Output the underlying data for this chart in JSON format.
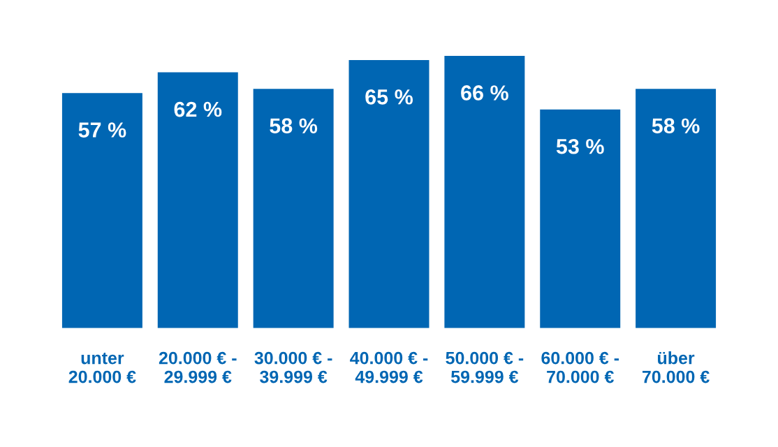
{
  "chart_data": {
    "type": "bar",
    "categories": [
      "unter\n20.000 €",
      "20.000 € -\n29.999 €",
      "30.000 € -\n39.999 €",
      "40.000 € -\n49.999 €",
      "50.000 € -\n59.999 €",
      "60.000 € -\n70.000 €",
      "über\n70.000 €"
    ],
    "values": [
      57,
      62,
      58,
      65,
      66,
      53,
      58
    ],
    "value_labels": [
      "57 %",
      "62 %",
      "58 %",
      "65 %",
      "66 %",
      "53 %",
      "58 %"
    ],
    "color": "#0066b3",
    "grid": false,
    "legend": false
  }
}
